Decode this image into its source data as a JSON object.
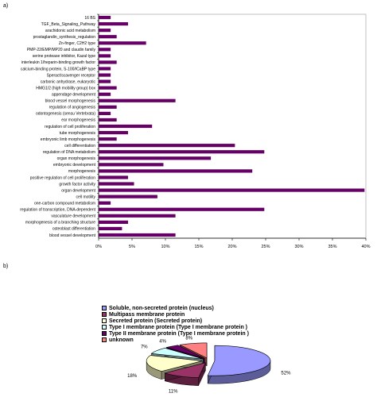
{
  "panels": {
    "a_label": "a)",
    "b_label": "b)"
  },
  "chart_data": [
    {
      "type": "bar",
      "orientation": "horizontal",
      "categories": [
        "16 BS",
        "TGF_Beta_Signaling_Pathway",
        "arachidonic acid metabolism",
        "prostaglandin_synthesis_regulation",
        "Zn-finger, C2H2 type",
        "PMP-22/EMP/MP20 and claudin family",
        "serine protease inhibitor, Kazal type",
        "interleukin 1/heparin-binding growth factor",
        "calcium-binding protein, S-100/ICaBP type",
        "Speract/scavenger receptor",
        "carbonic anhydrase, eukaryotic",
        "HMG1/2 (high mobility group) box",
        "appendage development",
        "blood vessel morphogenesis",
        "regulation of angiogenesis",
        "odontogenesis (sensu Vertebrata)",
        "ear morphogenesis",
        "regulation of cell proliferation",
        "tube morphogenesis",
        "embryonic limb morphogenesis",
        "cell differentiation",
        "regulation of DNA metabolism",
        "organ morphogenesis",
        "embryonic development",
        "morphogenesis",
        "positive regulation of cell proliferation",
        "growth factor activity",
        "organ development",
        "cell motility",
        "one-carbon compound metabolism",
        "regulation of transcription, DNA-dependent",
        "vasculature development",
        "morphogenesis of a branching structure",
        "osteoblast differentiation",
        "blood vessel development"
      ],
      "values": [
        1.8,
        4.4,
        1.8,
        2.7,
        7.1,
        1.8,
        1.8,
        2.7,
        1.8,
        1.8,
        1.8,
        2.7,
        1.8,
        11.5,
        2.7,
        1.8,
        2.7,
        8.0,
        4.4,
        2.7,
        20.4,
        24.8,
        16.8,
        9.7,
        23.0,
        4.4,
        5.3,
        39.8,
        8.8,
        1.8,
        24.8,
        11.5,
        4.4,
        3.5,
        11.5
      ],
      "xlim": [
        0,
        40
      ],
      "xticks": [
        "0%",
        "5%",
        "10%",
        "15%",
        "20%",
        "25%",
        "30%",
        "35%",
        "40%"
      ],
      "bar_color": "#660066",
      "grid": false
    },
    {
      "type": "pie",
      "style": "3d-exploded",
      "labels": [
        "Soluble, non-secreted protein (nucleus)",
        "Multipass membrane protein",
        "Secreted protein (Secreted protein)",
        "Type I membrane protein (Type I membrane protein )",
        "Type II membrane protein (Type I membrane protein )",
        "unknown"
      ],
      "values": [
        52,
        11,
        18,
        7,
        4,
        8
      ],
      "value_labels": [
        "52%",
        "11%",
        "18%",
        "7%",
        "4%",
        "8%"
      ],
      "colors": [
        "#9999ff",
        "#993366",
        "#ffffcc",
        "#ccffff",
        "#660066",
        "#ff8080"
      ],
      "legend_position": "top-left"
    }
  ]
}
